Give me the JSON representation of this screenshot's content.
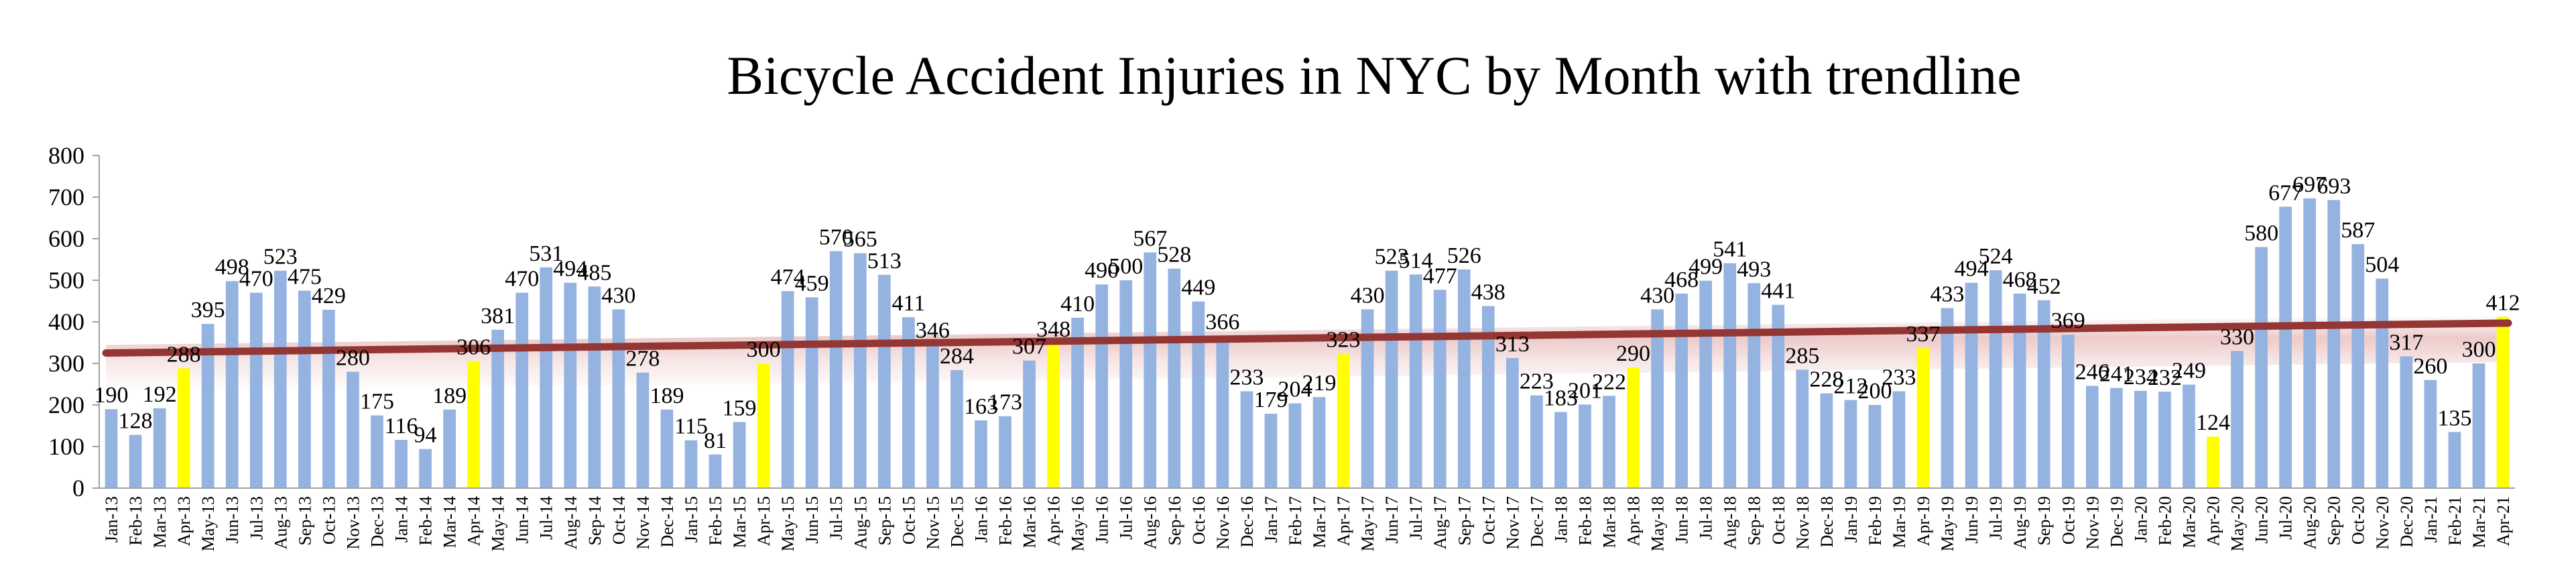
{
  "chart_data": {
    "type": "bar",
    "title": "Bicycle Accident Injuries in NYC by Month with trendline",
    "xlabel": "",
    "ylabel": "",
    "ylim": [
      0,
      800
    ],
    "yticks": [
      0,
      100,
      200,
      300,
      400,
      500,
      600,
      700,
      800
    ],
    "grid": false,
    "legend": "none",
    "colors": {
      "bar": "#95b3e0",
      "highlight": "#ffff00",
      "trendline": "#943634",
      "trend_band": "#e6b9b8",
      "axis": "#a0a0a0"
    },
    "categories": [
      "Jan-13",
      "Feb-13",
      "Mar-13",
      "Apr-13",
      "May-13",
      "Jun-13",
      "Jul-13",
      "Aug-13",
      "Sep-13",
      "Oct-13",
      "Nov-13",
      "Dec-13",
      "Jan-14",
      "Feb-14",
      "Mar-14",
      "Apr-14",
      "May-14",
      "Jun-14",
      "Jul-14",
      "Aug-14",
      "Sep-14",
      "Oct-14",
      "Nov-14",
      "Dec-14",
      "Jan-15",
      "Feb-15",
      "Mar-15",
      "Apr-15",
      "May-15",
      "Jun-15",
      "Jul-15",
      "Aug-15",
      "Sep-15",
      "Oct-15",
      "Nov-15",
      "Dec-15",
      "Jan-16",
      "Feb-16",
      "Mar-16",
      "Apr-16",
      "May-16",
      "Jun-16",
      "Jul-16",
      "Aug-16",
      "Sep-16",
      "Oct-16",
      "Nov-16",
      "Dec-16",
      "Jan-17",
      "Feb-17",
      "Mar-17",
      "Apr-17",
      "May-17",
      "Jun-17",
      "Jul-17",
      "Aug-17",
      "Sep-17",
      "Oct-17",
      "Nov-17",
      "Dec-17",
      "Jan-18",
      "Feb-18",
      "Mar-18",
      "Apr-18",
      "May-18",
      "Jun-18",
      "Jul-18",
      "Aug-18",
      "Sep-18",
      "Oct-18",
      "Nov-18",
      "Dec-18",
      "Jan-19",
      "Feb-19",
      "Mar-19",
      "Apr-19",
      "May-19",
      "Jun-19",
      "Jul-19",
      "Aug-19",
      "Sep-19",
      "Oct-19",
      "Nov-19",
      "Dec-19",
      "Jan-20",
      "Feb-20",
      "Mar-20",
      "Apr-20",
      "May-20",
      "Jun-20",
      "Jul-20",
      "Aug-20",
      "Sep-20",
      "Oct-20",
      "Nov-20",
      "Dec-20",
      "Jan-21",
      "Feb-21",
      "Mar-21",
      "Apr-21"
    ],
    "values": [
      190,
      128,
      192,
      288,
      395,
      498,
      470,
      523,
      475,
      429,
      280,
      175,
      116,
      94,
      189,
      306,
      381,
      470,
      531,
      494,
      485,
      430,
      278,
      189,
      115,
      81,
      159,
      300,
      474,
      459,
      570,
      565,
      513,
      411,
      346,
      284,
      163,
      173,
      307,
      348,
      410,
      490,
      500,
      567,
      528,
      449,
      366,
      233,
      179,
      204,
      219,
      323,
      430,
      523,
      514,
      477,
      526,
      438,
      313,
      223,
      183,
      201,
      222,
      290,
      430,
      468,
      499,
      541,
      493,
      441,
      285,
      228,
      212,
      200,
      233,
      337,
      433,
      494,
      524,
      468,
      452,
      369,
      246,
      241,
      234,
      232,
      249,
      124,
      330,
      580,
      677,
      697,
      693,
      587,
      504,
      317,
      260,
      135,
      300,
      412
    ],
    "highlight_categories": [
      "Apr-13",
      "Apr-14",
      "Apr-15",
      "Apr-16",
      "Apr-17",
      "Apr-18",
      "Apr-19",
      "Apr-20",
      "Apr-21"
    ],
    "trendline": {
      "type": "linear",
      "start_value": 325,
      "end_value": 397
    }
  }
}
